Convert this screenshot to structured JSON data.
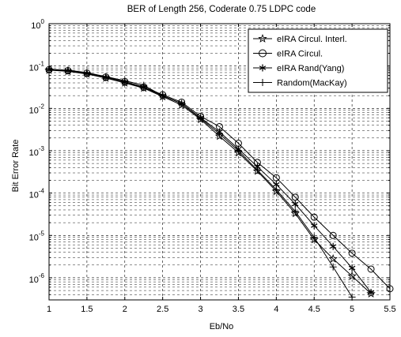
{
  "chart_data": {
    "type": "line",
    "title": "BER of Length 256, Coderate 0.75 LDPC code",
    "xlabel": "Eb/No",
    "ylabel": "Bit Error Rate",
    "xlim": [
      1,
      5.5
    ],
    "ylim": [
      3e-07,
      1
    ],
    "yscale": "log",
    "grid": true,
    "legend_position": "top-right",
    "x_ticks": [
      "1",
      "1.5",
      "2",
      "2.5",
      "3",
      "3.5",
      "4",
      "4.5",
      "5",
      "5.5"
    ],
    "y_ticks": [
      {
        "base": "10",
        "exp": "0"
      },
      {
        "base": "10",
        "exp": "-1"
      },
      {
        "base": "10",
        "exp": "-2"
      },
      {
        "base": "10",
        "exp": "-3"
      },
      {
        "base": "10",
        "exp": "-4"
      },
      {
        "base": "10",
        "exp": "-5"
      },
      {
        "base": "10",
        "exp": "-6"
      }
    ],
    "series": [
      {
        "name": "eIRA Circul. Interl.",
        "marker": "star",
        "x": [
          1,
          1.25,
          1.5,
          1.75,
          2,
          2.25,
          2.5,
          2.75,
          3,
          3.25,
          3.5,
          3.75,
          4,
          4.25,
          4.5,
          4.75,
          5,
          5.25
        ],
        "y": [
          0.08,
          0.075,
          0.065,
          0.052,
          0.04,
          0.03,
          0.019,
          0.012,
          0.0055,
          0.0022,
          0.0009,
          0.00033,
          0.00011,
          3.3e-05,
          8e-06,
          2.8e-06,
          1.1e-06,
          4.2e-07
        ]
      },
      {
        "name": "eIRA Circul.",
        "marker": "circle",
        "x": [
          1,
          1.25,
          1.5,
          1.75,
          2,
          2.25,
          2.5,
          2.75,
          3,
          3.25,
          3.5,
          3.75,
          4,
          4.25,
          4.5,
          4.75,
          5,
          5.25,
          5.5
        ],
        "y": [
          0.082,
          0.078,
          0.068,
          0.055,
          0.043,
          0.032,
          0.021,
          0.014,
          0.0065,
          0.0037,
          0.0015,
          0.00053,
          0.00023,
          8e-05,
          2.7e-05,
          1e-05,
          3.8e-06,
          1.6e-06,
          5.5e-07
        ]
      },
      {
        "name": "eIRA Rand(Yang)",
        "marker": "asterisk",
        "x": [
          1,
          1.25,
          1.5,
          1.75,
          2,
          2.25,
          2.5,
          2.75,
          3,
          3.25,
          3.5,
          3.75,
          4,
          4.25,
          4.5,
          4.75,
          5,
          5.25
        ],
        "y": [
          0.081,
          0.077,
          0.066,
          0.053,
          0.041,
          0.031,
          0.02,
          0.013,
          0.006,
          0.0028,
          0.0011,
          0.00042,
          0.00016,
          5.5e-05,
          1.7e-05,
          5.5e-06,
          1.7e-06,
          4.5e-07
        ]
      },
      {
        "name": "Random(MacKay)",
        "marker": "plus",
        "x": [
          1,
          1.25,
          1.5,
          1.75,
          2,
          2.25,
          2.5,
          2.75,
          3,
          3.25,
          3.5,
          3.75,
          4,
          4.25,
          4.5,
          4.75,
          5
        ],
        "y": [
          0.084,
          0.08,
          0.07,
          0.056,
          0.045,
          0.035,
          0.02,
          0.013,
          0.0058,
          0.0025,
          0.001,
          0.00035,
          0.00012,
          3.7e-05,
          9e-06,
          1.8e-06,
          3.5e-07
        ]
      }
    ]
  }
}
